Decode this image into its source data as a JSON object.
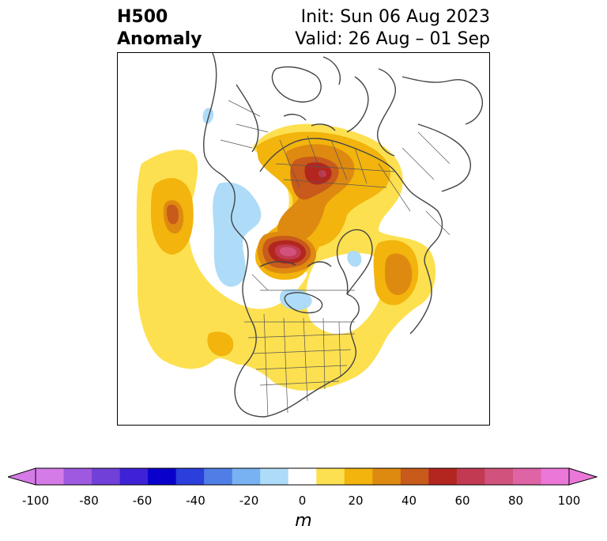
{
  "title": {
    "left_line1": "H500",
    "left_line2": "Anomaly",
    "right_line1": "Init: Sun 06 Aug 2023",
    "right_line2": "Valid: 26 Aug – 01 Sep"
  },
  "map": {
    "projection": "north-polar-stereographic",
    "variable": "500 hPa geopotential height anomaly",
    "features": [
      {
        "name": "gulf-of-alaska-ridge",
        "level": 40
      },
      {
        "name": "arctic-ocean-ridge",
        "level": 80
      },
      {
        "name": "siberia-ridge",
        "level": 70
      },
      {
        "name": "scandinavia-ridge",
        "level": 40
      },
      {
        "name": "western-canada-trough",
        "level": -20
      },
      {
        "name": "greenland-sea-trough",
        "level": -20
      },
      {
        "name": "north-america-ridge",
        "level": 20
      }
    ]
  },
  "colorbar": {
    "unit": "m",
    "min": -100,
    "max": 100,
    "ticks": [
      "-100",
      "-80",
      "-60",
      "-40",
      "-20",
      "0",
      "20",
      "40",
      "60",
      "80",
      "100"
    ],
    "colors": [
      "#d57be8",
      "#9f59e0",
      "#7040d8",
      "#3f22d6",
      "#0a00cc",
      "#2a3fdb",
      "#4f7ee6",
      "#78b2f2",
      "#aedcf8",
      "#ffffff",
      "#fde04f",
      "#f2b40d",
      "#de8a10",
      "#c85a1b",
      "#b3261f",
      "#c23a52",
      "#d1527c",
      "#de64a6",
      "#eb78d8"
    ],
    "extend_low_color": "#d57be8",
    "extend_high_color": "#eb78d8"
  }
}
